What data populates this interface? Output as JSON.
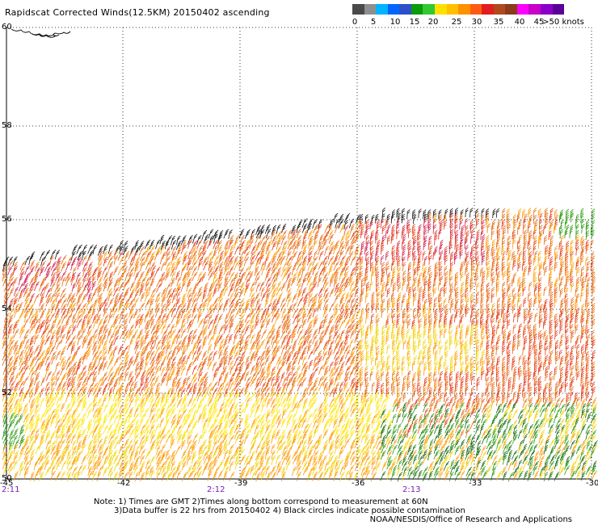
{
  "title": "Rapidscat Corrected Winds(12.5KM) 20150402 ascending",
  "legend": {
    "colors": [
      "#4a4a4a",
      "#8f8f8f",
      "#00b4ff",
      "#0066ff",
      "#2d50c8",
      "#0a9a0a",
      "#32c832",
      "#ffe000",
      "#ffc000",
      "#ff9000",
      "#ff5a14",
      "#e01e1e",
      "#b04a1e",
      "#8a3b1a",
      "#ff00ff",
      "#c800c8",
      "#8b00c8",
      "#5a0096"
    ],
    "ticks": [
      "0",
      "5",
      "10",
      "15",
      "20",
      "25",
      "30",
      "35",
      "40",
      "45",
      ">50 knots"
    ],
    "wind_speed_scale_knots": [
      0,
      5,
      10,
      15,
      20,
      25,
      30,
      35,
      40,
      45,
      50
    ]
  },
  "map": {
    "lat_labels": [
      "60",
      "58",
      "56",
      "54",
      "52",
      "50"
    ],
    "lon_labels": [
      "-45",
      "-42",
      "-39",
      "-36",
      "-33",
      "-30"
    ],
    "time_labels": [
      "2:11",
      "2:12",
      "2:13"
    ],
    "grid": "dotted",
    "swath": "ascending, covering approx 50N-56N",
    "land_feature": "coastline fragment near 60N -45"
  },
  "notes": {
    "line1": "Note: 1) Times are GMT 2)Times along bottom correspond to measurement at 60N",
    "line2": "3)Data buffer is 22 hrs from 20150402 4) Black circles indicate possible contamination",
    "credit": "NOAA/NESDIS/Office of Research and Applications"
  }
}
